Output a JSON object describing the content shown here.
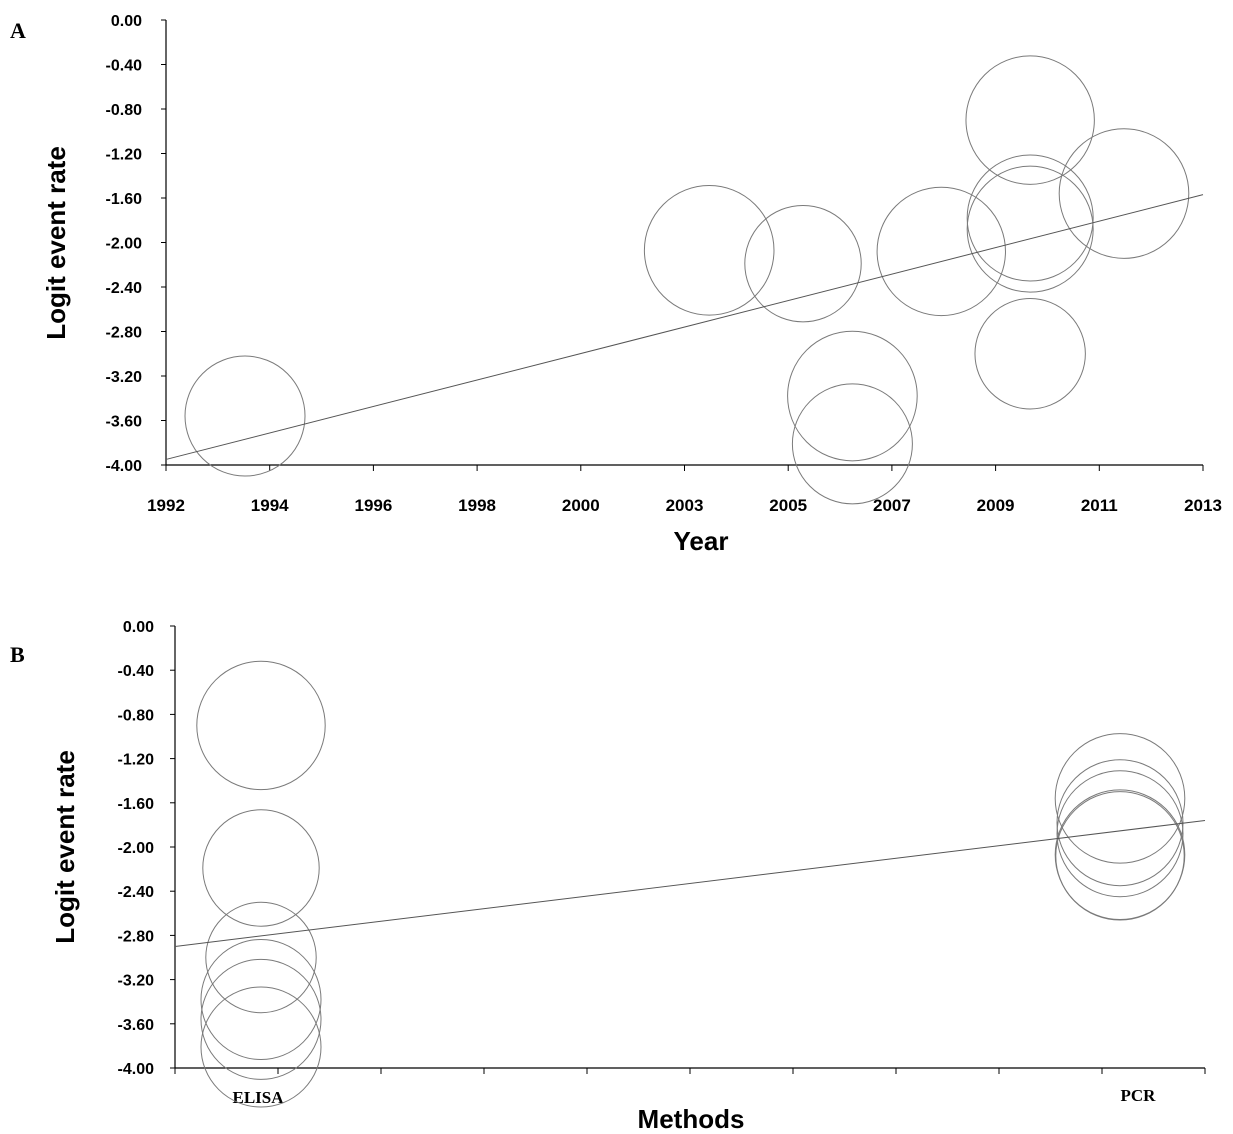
{
  "chart_data": [
    {
      "type": "scatter",
      "panel_label": "A",
      "title": "",
      "xlabel": "Year",
      "ylabel": "Logit event rate",
      "xlim": [
        1992,
        2013
      ],
      "ylim": [
        -4.0,
        0.0
      ],
      "yticks": [
        "0.00",
        "-0.40",
        "-0.80",
        "-1.20",
        "-1.60",
        "-2.00",
        "-2.40",
        "-2.80",
        "-3.20",
        "-3.60",
        "-4.00"
      ],
      "xticks": [
        "1992",
        "1994",
        "1996",
        "1998",
        "2000",
        "2003",
        "2005",
        "2007",
        "2009",
        "2011",
        "2013"
      ],
      "grid": false,
      "bubbles": [
        {
          "x": 1993.6,
          "y": -3.56,
          "size": 1.0
        },
        {
          "x": 2003.0,
          "y": -2.07,
          "size": 1.08
        },
        {
          "x": 2004.9,
          "y": -2.19,
          "size": 0.97
        },
        {
          "x": 2005.9,
          "y": -3.38,
          "size": 1.08
        },
        {
          "x": 2005.9,
          "y": -3.81,
          "size": 1.0
        },
        {
          "x": 2007.7,
          "y": -2.08,
          "size": 1.07
        },
        {
          "x": 2009.5,
          "y": -0.9,
          "size": 1.07
        },
        {
          "x": 2009.5,
          "y": -1.78,
          "size": 1.05
        },
        {
          "x": 2009.5,
          "y": -1.88,
          "size": 1.05
        },
        {
          "x": 2009.5,
          "y": -3.0,
          "size": 0.92
        },
        {
          "x": 2011.4,
          "y": -1.56,
          "size": 1.08
        }
      ],
      "regression": {
        "x": [
          1992,
          2013
        ],
        "y": [
          -3.95,
          -1.57
        ]
      }
    },
    {
      "type": "scatter",
      "panel_label": "B",
      "title": "",
      "xlabel": "Methods",
      "ylabel": "Logit event rate",
      "xlim": [
        0,
        10
      ],
      "ylim": [
        -4.0,
        0.0
      ],
      "yticks": [
        "0.00",
        "-0.40",
        "-0.80",
        "-1.20",
        "-1.60",
        "-2.00",
        "-2.40",
        "-2.80",
        "-3.20",
        "-3.60",
        "-4.00"
      ],
      "categories": [
        "ELISA",
        "PCR"
      ],
      "grid": false,
      "bubbles": [
        {
          "category": "ELISA",
          "y": -0.9,
          "size": 1.07
        },
        {
          "category": "ELISA",
          "y": -2.19,
          "size": 0.97
        },
        {
          "category": "ELISA",
          "y": -3.0,
          "size": 0.92
        },
        {
          "category": "ELISA",
          "y": -3.38,
          "size": 1.0
        },
        {
          "category": "ELISA",
          "y": -3.56,
          "size": 1.0
        },
        {
          "category": "ELISA",
          "y": -3.81,
          "size": 1.0
        },
        {
          "category": "PCR",
          "y": -1.56,
          "size": 1.08
        },
        {
          "category": "PCR",
          "y": -1.78,
          "size": 1.05
        },
        {
          "category": "PCR",
          "y": -1.88,
          "size": 1.05
        },
        {
          "category": "PCR",
          "y": -2.07,
          "size": 1.08
        },
        {
          "category": "PCR",
          "y": -2.08,
          "size": 1.07
        }
      ],
      "regression": {
        "y_start": -2.9,
        "y_end": -1.76
      }
    }
  ]
}
